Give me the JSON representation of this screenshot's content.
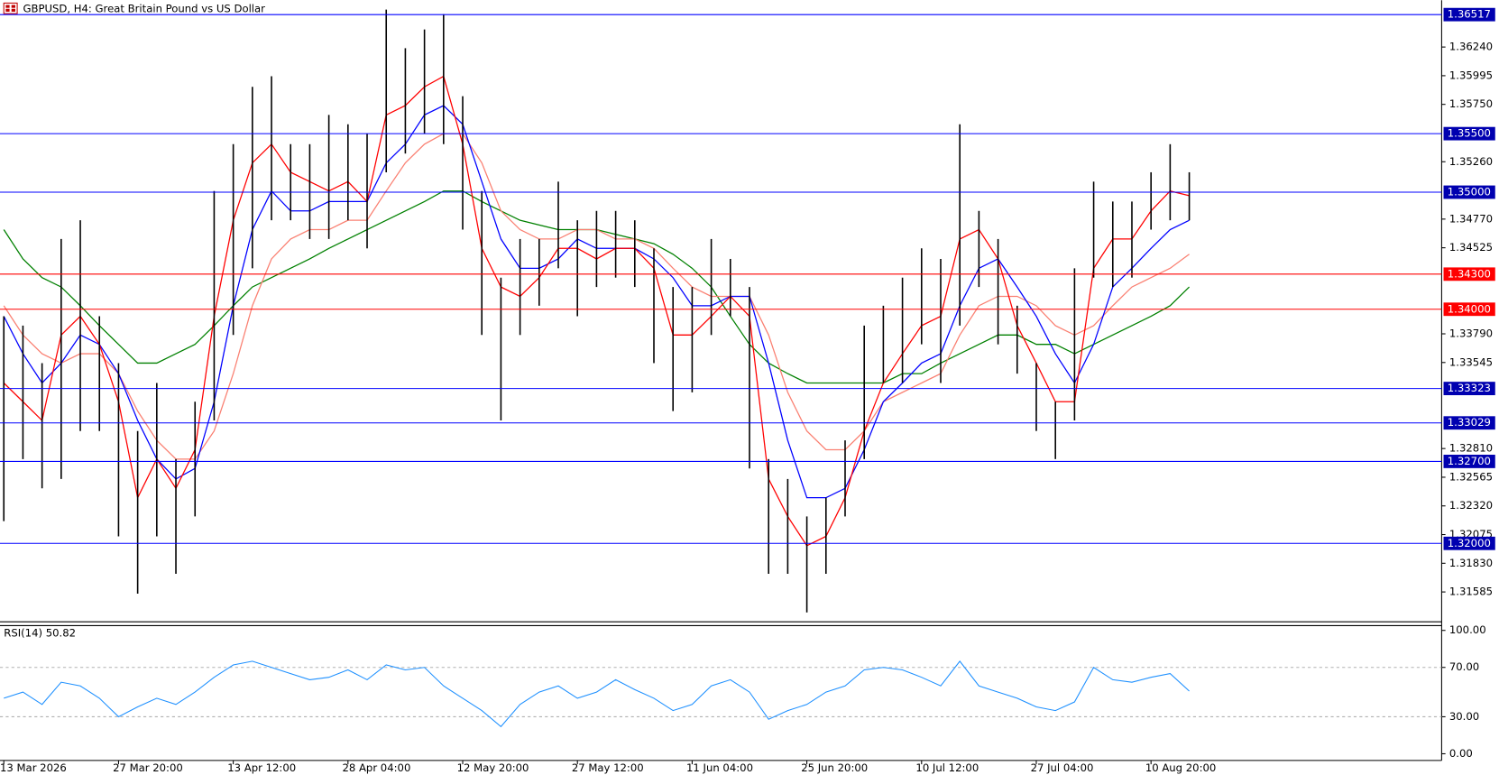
{
  "chart_data": [
    {
      "type": "ohlc",
      "title": "GBPUSD, H4:  Great Britain Pound vs US Dollar",
      "categories": [
        "13 Mar 2026",
        null,
        null,
        null,
        null,
        null,
        "27 Mar 20:00",
        null,
        null,
        null,
        null,
        null,
        "13 Apr 12:00",
        null,
        null,
        null,
        null,
        null,
        "28 Apr 04:00",
        null,
        null,
        null,
        null,
        null,
        "12 May 20:00",
        null,
        null,
        null,
        null,
        null,
        "27 May 12:00",
        null,
        null,
        null,
        null,
        null,
        "11 Jun 04:00",
        null,
        null,
        null,
        null,
        null,
        "25 Jun 20:00",
        null,
        null,
        null,
        null,
        null,
        "10 Jul 12:00",
        null,
        null,
        null,
        null,
        null,
        "27 Jul 04:00",
        null,
        null,
        null,
        null,
        null,
        "10 Aug 20:00",
        null,
        null
      ],
      "high": [
        1.3394,
        1.3386,
        1.3354,
        1.346,
        1.3476,
        1.3394,
        1.3354,
        1.3296,
        1.3337,
        1.3272,
        1.3321,
        1.3501,
        1.3541,
        1.359,
        1.3599,
        1.3541,
        1.3541,
        1.3566,
        1.3558,
        1.355,
        1.3656,
        1.3623,
        1.3639,
        1.3652,
        1.3582,
        1.3501,
        1.3427,
        1.346,
        1.346,
        1.3509,
        1.3476,
        1.3484,
        1.3484,
        1.3476,
        1.3452,
        1.3419,
        1.3419,
        1.346,
        1.3443,
        1.3419,
        1.3272,
        1.3255,
        1.3223,
        1.3239,
        1.3288,
        1.3386,
        1.3403,
        1.3427,
        1.3452,
        1.3443,
        1.3558,
        1.3484,
        1.346,
        1.3403,
        1.3354,
        1.3321,
        1.3435,
        1.3509,
        1.3492,
        1.3492,
        1.3517,
        1.3541,
        1.3517
      ],
      "low": [
        1.3219,
        1.3272,
        1.3247,
        1.3255,
        1.3296,
        1.3296,
        1.3206,
        1.3157,
        1.3206,
        1.3174,
        1.3223,
        1.3305,
        1.3378,
        1.3435,
        1.3476,
        1.3476,
        1.346,
        1.346,
        1.3476,
        1.3452,
        1.3517,
        1.3533,
        1.355,
        1.3541,
        1.3468,
        1.3378,
        1.3305,
        1.3378,
        1.3403,
        1.3435,
        1.3394,
        1.3419,
        1.3427,
        1.3419,
        1.3354,
        1.3313,
        1.3329,
        1.3378,
        1.3394,
        1.3264,
        1.3174,
        1.3174,
        1.3141,
        1.3174,
        1.3223,
        1.3272,
        1.3337,
        1.3337,
        1.337,
        1.3337,
        1.3386,
        1.3419,
        1.337,
        1.3345,
        1.3296,
        1.3272,
        1.3305,
        1.3427,
        1.3419,
        1.3427,
        1.3468,
        1.3476,
        1.3476
      ],
      "color": "#000000",
      "lines": [
        {
          "color": "#008000",
          "values": [
            1.3468,
            1.3443,
            1.3427,
            1.3419,
            1.3403,
            1.3386,
            1.337,
            1.3354,
            1.3354,
            1.3362,
            1.337,
            1.3386,
            1.3403,
            1.3419,
            1.3427,
            1.3435,
            1.3443,
            1.3452,
            1.346,
            1.3468,
            1.3476,
            1.3484,
            1.3492,
            1.3501,
            1.3501,
            1.3492,
            1.3484,
            1.3476,
            1.3472,
            1.3468,
            1.3468,
            1.3468,
            1.3464,
            1.346,
            1.3456,
            1.3447,
            1.3435,
            1.3419,
            1.3394,
            1.337,
            1.3354,
            1.3345,
            1.3337,
            1.3337,
            1.3337,
            1.3337,
            1.3337,
            1.3345,
            1.3345,
            1.3354,
            1.3362,
            1.337,
            1.3378,
            1.3378,
            1.337,
            1.337,
            1.3362,
            1.337,
            1.3378,
            1.3386,
            1.3394,
            1.3403,
            1.3419
          ]
        },
        {
          "color": "#fa8072",
          "values": [
            1.3403,
            1.3378,
            1.3362,
            1.3354,
            1.3362,
            1.3362,
            1.3345,
            1.3313,
            1.3288,
            1.3272,
            1.3272,
            1.3296,
            1.3345,
            1.3403,
            1.3443,
            1.346,
            1.3468,
            1.3468,
            1.3476,
            1.3476,
            1.3501,
            1.3525,
            1.3541,
            1.355,
            1.355,
            1.3525,
            1.3484,
            1.3468,
            1.346,
            1.346,
            1.3468,
            1.3468,
            1.346,
            1.346,
            1.3452,
            1.3435,
            1.3419,
            1.3411,
            1.3411,
            1.3411,
            1.3378,
            1.3329,
            1.3296,
            1.328,
            1.328,
            1.3296,
            1.3321,
            1.3329,
            1.3337,
            1.3345,
            1.3378,
            1.3403,
            1.3411,
            1.3411,
            1.3403,
            1.3386,
            1.3378,
            1.3386,
            1.3403,
            1.3419,
            1.3427,
            1.3435,
            1.3447
          ]
        },
        {
          "color": "#0000ff",
          "values": [
            1.3394,
            1.3362,
            1.3337,
            1.3354,
            1.3378,
            1.337,
            1.3345,
            1.3305,
            1.3272,
            1.3255,
            1.3264,
            1.3321,
            1.3403,
            1.3468,
            1.3501,
            1.3484,
            1.3484,
            1.3492,
            1.3492,
            1.3492,
            1.3525,
            1.3541,
            1.3566,
            1.3574,
            1.3558,
            1.3509,
            1.346,
            1.3435,
            1.3435,
            1.3443,
            1.346,
            1.3452,
            1.3452,
            1.3452,
            1.3443,
            1.3427,
            1.3403,
            1.3403,
            1.3411,
            1.3411,
            1.3354,
            1.3288,
            1.3239,
            1.3239,
            1.3247,
            1.328,
            1.3321,
            1.3337,
            1.3354,
            1.3362,
            1.3403,
            1.3435,
            1.3443,
            1.3419,
            1.3394,
            1.3362,
            1.3337,
            1.337,
            1.3419,
            1.3435,
            1.3452,
            1.3468,
            1.3476
          ]
        },
        {
          "color": "#ff0000",
          "values": [
            1.3337,
            1.3321,
            1.3305,
            1.3378,
            1.3394,
            1.337,
            1.3321,
            1.3239,
            1.3272,
            1.3247,
            1.328,
            1.3394,
            1.3476,
            1.3525,
            1.3541,
            1.3517,
            1.3509,
            1.3501,
            1.3509,
            1.3492,
            1.3566,
            1.3574,
            1.359,
            1.3599,
            1.3541,
            1.3452,
            1.3419,
            1.3411,
            1.3427,
            1.3452,
            1.3452,
            1.3443,
            1.3452,
            1.3452,
            1.3435,
            1.3378,
            1.3378,
            1.3394,
            1.3411,
            1.3394,
            1.3255,
            1.3223,
            1.3198,
            1.3206,
            1.3239,
            1.3296,
            1.3337,
            1.3362,
            1.3386,
            1.3394,
            1.346,
            1.3468,
            1.3443,
            1.3386,
            1.3354,
            1.3321,
            1.3321,
            1.3435,
            1.346,
            1.346,
            1.3484,
            1.3501,
            1.3497
          ]
        }
      ],
      "levels": [
        {
          "value": 1.36517,
          "color": "#0000ff"
        },
        {
          "value": 1.355,
          "label": "1.35500",
          "color": "#0000ff"
        },
        {
          "value": 1.35,
          "label": "1.35000",
          "color": "#0000ff"
        },
        {
          "value": 1.343,
          "label": "1.34300",
          "color": "#ff0000"
        },
        {
          "value": 1.34,
          "label": "1.34000",
          "color": "#ff0000"
        },
        {
          "value": 1.33323,
          "color": "#0000ff"
        },
        {
          "value": 1.33029,
          "color": "#0000ff"
        },
        {
          "value": 1.327,
          "label": "1.32700",
          "color": "#0000ff"
        },
        {
          "value": 1.32,
          "label": "1.32000",
          "color": "#0000ff"
        }
      ],
      "ylim": [
        1.3133,
        1.3664
      ],
      "yticks": [
        {
          "value": 1.3624,
          "label": "1.36240"
        },
        1.35995,
        {
          "value": 1.3575,
          "label": "1.35750"
        },
        {
          "value": 1.3526,
          "label": "1.35260"
        },
        {
          "value": 1.3477,
          "label": "1.34770"
        },
        1.34525,
        {
          "value": 1.3379,
          "label": "1.33790"
        },
        1.33545,
        {
          "value": 1.3281,
          "label": "1.32810"
        },
        1.32565,
        {
          "value": 1.3232,
          "label": "1.32320"
        },
        1.32075,
        {
          "value": 1.3183,
          "label": "1.31830"
        },
        1.31585
      ]
    },
    {
      "type": "rsi",
      "title": "RSI(14) 50.82",
      "values": [
        45,
        50,
        40,
        58,
        55,
        45,
        30,
        38,
        45,
        40,
        50,
        62,
        72,
        75,
        70,
        65,
        60,
        62,
        68,
        60,
        72,
        68,
        70,
        55,
        45,
        35,
        22,
        40,
        50,
        55,
        45,
        50,
        60,
        52,
        45,
        35,
        40,
        55,
        60,
        50,
        28,
        35,
        40,
        50,
        55,
        68,
        70,
        68,
        62,
        55,
        75,
        55,
        50,
        45,
        38,
        35,
        42,
        70,
        60,
        58,
        62,
        65,
        50.82
      ],
      "color": "#1e90ff",
      "ylim": [
        0,
        100
      ],
      "yticks": [
        {
          "value": 100,
          "label": "100.00"
        },
        {
          "value": 70,
          "label": "70.00"
        },
        {
          "value": 30,
          "label": "30.00"
        },
        {
          "value": 0,
          "label": "0.00"
        }
      ],
      "grid": true
    }
  ]
}
